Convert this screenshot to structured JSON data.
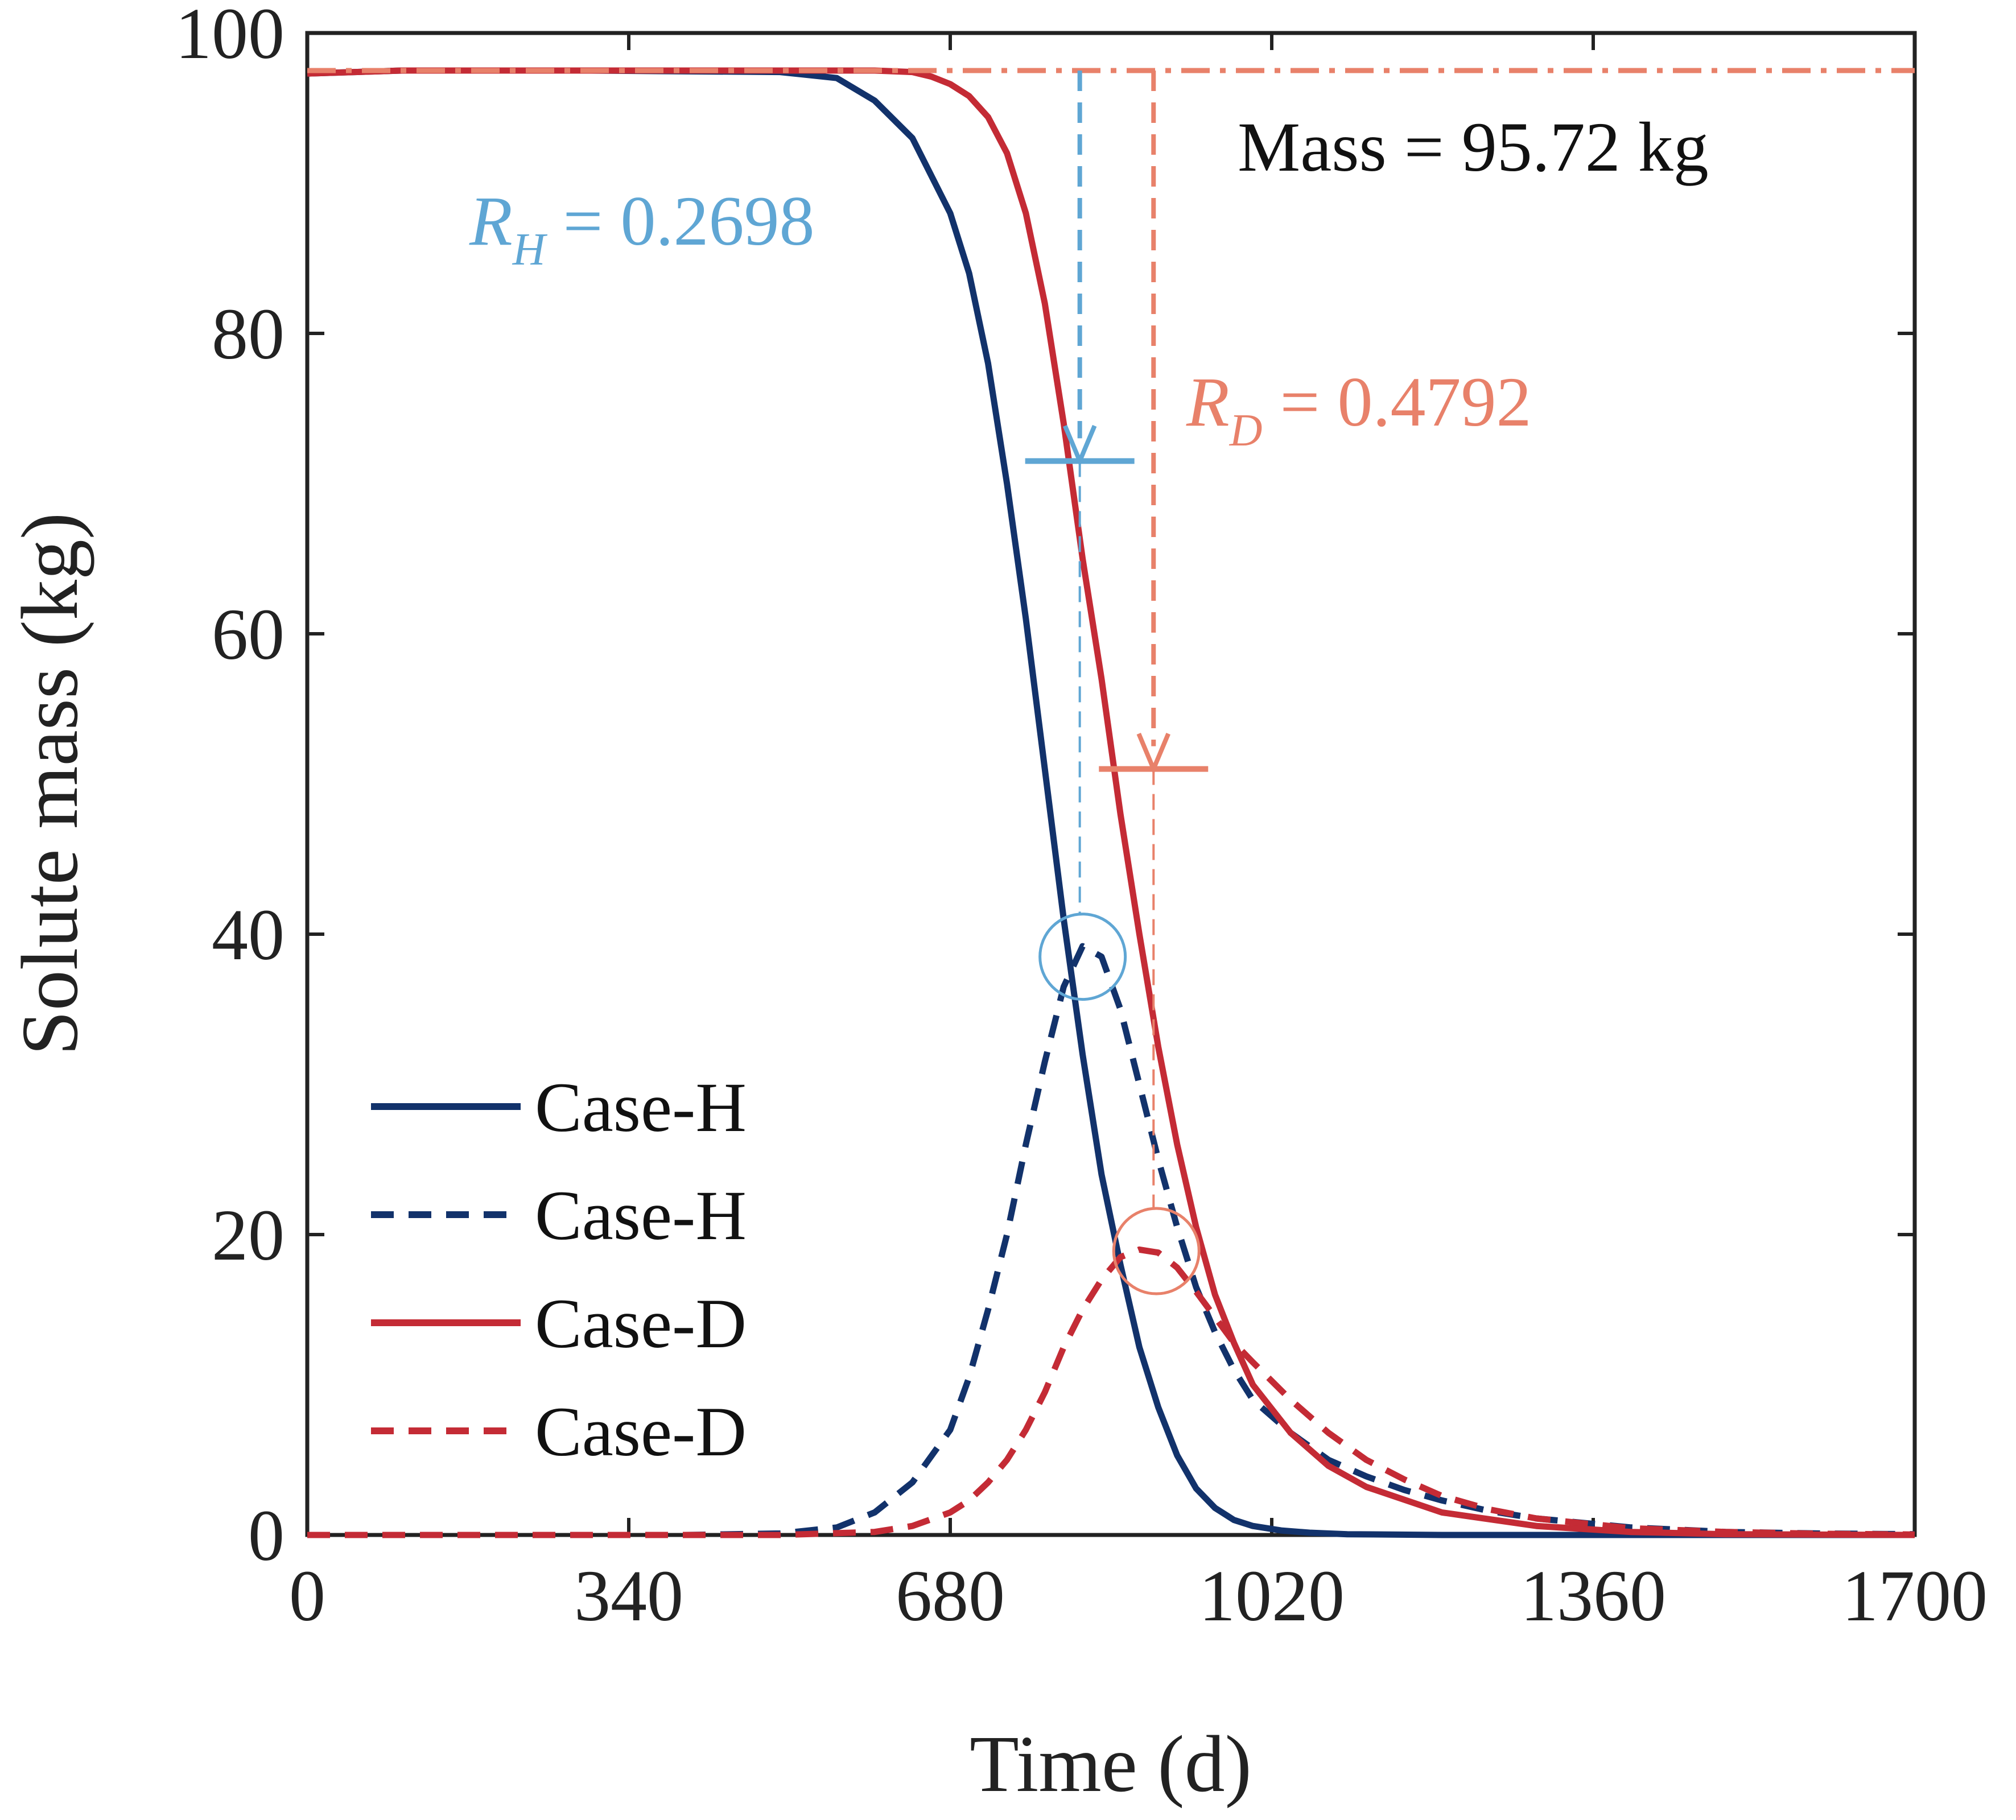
{
  "chart_data": {
    "type": "line",
    "title": "",
    "xlabel": "Time (d)",
    "ylabel": "Solute mass (kg)",
    "xlim": [
      0,
      1700
    ],
    "ylim": [
      0,
      100
    ],
    "xticks": [
      0,
      340,
      680,
      1020,
      1360,
      1700
    ],
    "yticks": [
      0,
      20,
      40,
      60,
      80,
      100
    ],
    "xtick_labels": [
      "0",
      "340",
      "680",
      "1020",
      "1360",
      "1700"
    ],
    "ytick_labels": [
      "0",
      "20",
      "40",
      "60",
      "80",
      "100"
    ],
    "grid": false,
    "legend_position": "lower-left",
    "series": [
      {
        "name": "Case-H",
        "style": "solid",
        "color": "#12326b",
        "x": [
          0,
          100,
          300,
          500,
          560,
          600,
          640,
          680,
          700,
          720,
          740,
          760,
          780,
          800,
          820,
          840,
          860,
          880,
          900,
          920,
          940,
          960,
          980,
          1000,
          1030,
          1060,
          1100,
          1200,
          1400,
          1700
        ],
        "y": [
          97.3,
          97.5,
          97.5,
          97.4,
          97.0,
          95.5,
          93.0,
          88.0,
          84.0,
          78.0,
          70.0,
          61.0,
          51.0,
          41.0,
          32.0,
          24.0,
          18.0,
          12.5,
          8.5,
          5.3,
          3.1,
          1.8,
          1.0,
          0.6,
          0.3,
          0.15,
          0.05,
          0.0,
          0.0,
          0.0
        ]
      },
      {
        "name": "Case-H",
        "style": "dashed",
        "color": "#12326b",
        "x": [
          0,
          400,
          500,
          560,
          600,
          640,
          680,
          700,
          720,
          740,
          760,
          780,
          800,
          820,
          840,
          860,
          880,
          900,
          920,
          940,
          960,
          980,
          1000,
          1040,
          1080,
          1120,
          1160,
          1200,
          1250,
          1300,
          1400,
          1500,
          1600,
          1700
        ],
        "y": [
          0,
          0,
          0.1,
          0.5,
          1.5,
          3.5,
          7.0,
          10.5,
          15.0,
          20.0,
          26.0,
          31.5,
          36.5,
          39.2,
          38.5,
          35.0,
          30.0,
          25.0,
          20.5,
          16.5,
          13.5,
          11.0,
          9.0,
          6.8,
          5.0,
          3.9,
          3.0,
          2.3,
          1.6,
          1.1,
          0.5,
          0.2,
          0.1,
          0.05
        ]
      },
      {
        "name": "Case-D",
        "style": "solid",
        "color": "#c42b35",
        "x": [
          0,
          100,
          300,
          500,
          600,
          640,
          660,
          680,
          700,
          720,
          740,
          760,
          780,
          800,
          820,
          840,
          860,
          880,
          900,
          920,
          940,
          960,
          980,
          1000,
          1040,
          1080,
          1120,
          1200,
          1300,
          1400,
          1500,
          1700
        ],
        "y": [
          97.3,
          97.5,
          97.5,
          97.5,
          97.5,
          97.4,
          97.1,
          96.6,
          95.8,
          94.4,
          92.0,
          88.0,
          82.0,
          74.0,
          65.0,
          57.0,
          48.0,
          40.0,
          32.5,
          26.0,
          20.5,
          16.0,
          12.8,
          10.0,
          6.8,
          4.6,
          3.2,
          1.5,
          0.6,
          0.2,
          0.05,
          0.0
        ]
      },
      {
        "name": "Case-D",
        "style": "dashed",
        "color": "#c42b35",
        "x": [
          0,
          500,
          600,
          640,
          680,
          700,
          720,
          740,
          760,
          780,
          800,
          820,
          840,
          860,
          880,
          900,
          920,
          940,
          960,
          980,
          1000,
          1040,
          1080,
          1120,
          1160,
          1200,
          1250,
          1300,
          1400,
          1500,
          1600,
          1700
        ],
        "y": [
          0,
          0,
          0.2,
          0.6,
          1.5,
          2.3,
          3.5,
          5.0,
          7.0,
          9.5,
          12.5,
          15.0,
          17.0,
          18.5,
          19.0,
          18.8,
          17.8,
          16.2,
          14.5,
          12.8,
          11.5,
          9.0,
          6.8,
          5.0,
          3.7,
          2.6,
          1.7,
          1.1,
          0.45,
          0.2,
          0.08,
          0.03
        ]
      }
    ],
    "annotations": [
      {
        "id": "mass",
        "text": "Mass = 95.72 kg",
        "reference_y": 97.5,
        "color": "#e8816a"
      },
      {
        "id": "rh",
        "label_main": "R",
        "label_sub": "H",
        "label_value": " = 0.2698",
        "x": 817,
        "arrow_from_y": 97.5,
        "arrow_to_y": 71.5,
        "peak_y": 38.5,
        "color": "#5fa6d4"
      },
      {
        "id": "rd",
        "label_main": "R",
        "label_sub": "D",
        "label_value": " = 0.4792",
        "x": 895,
        "arrow_from_y": 97.5,
        "arrow_to_y": 51.0,
        "peak_y": 18.9,
        "color": "#e8816a"
      }
    ]
  }
}
